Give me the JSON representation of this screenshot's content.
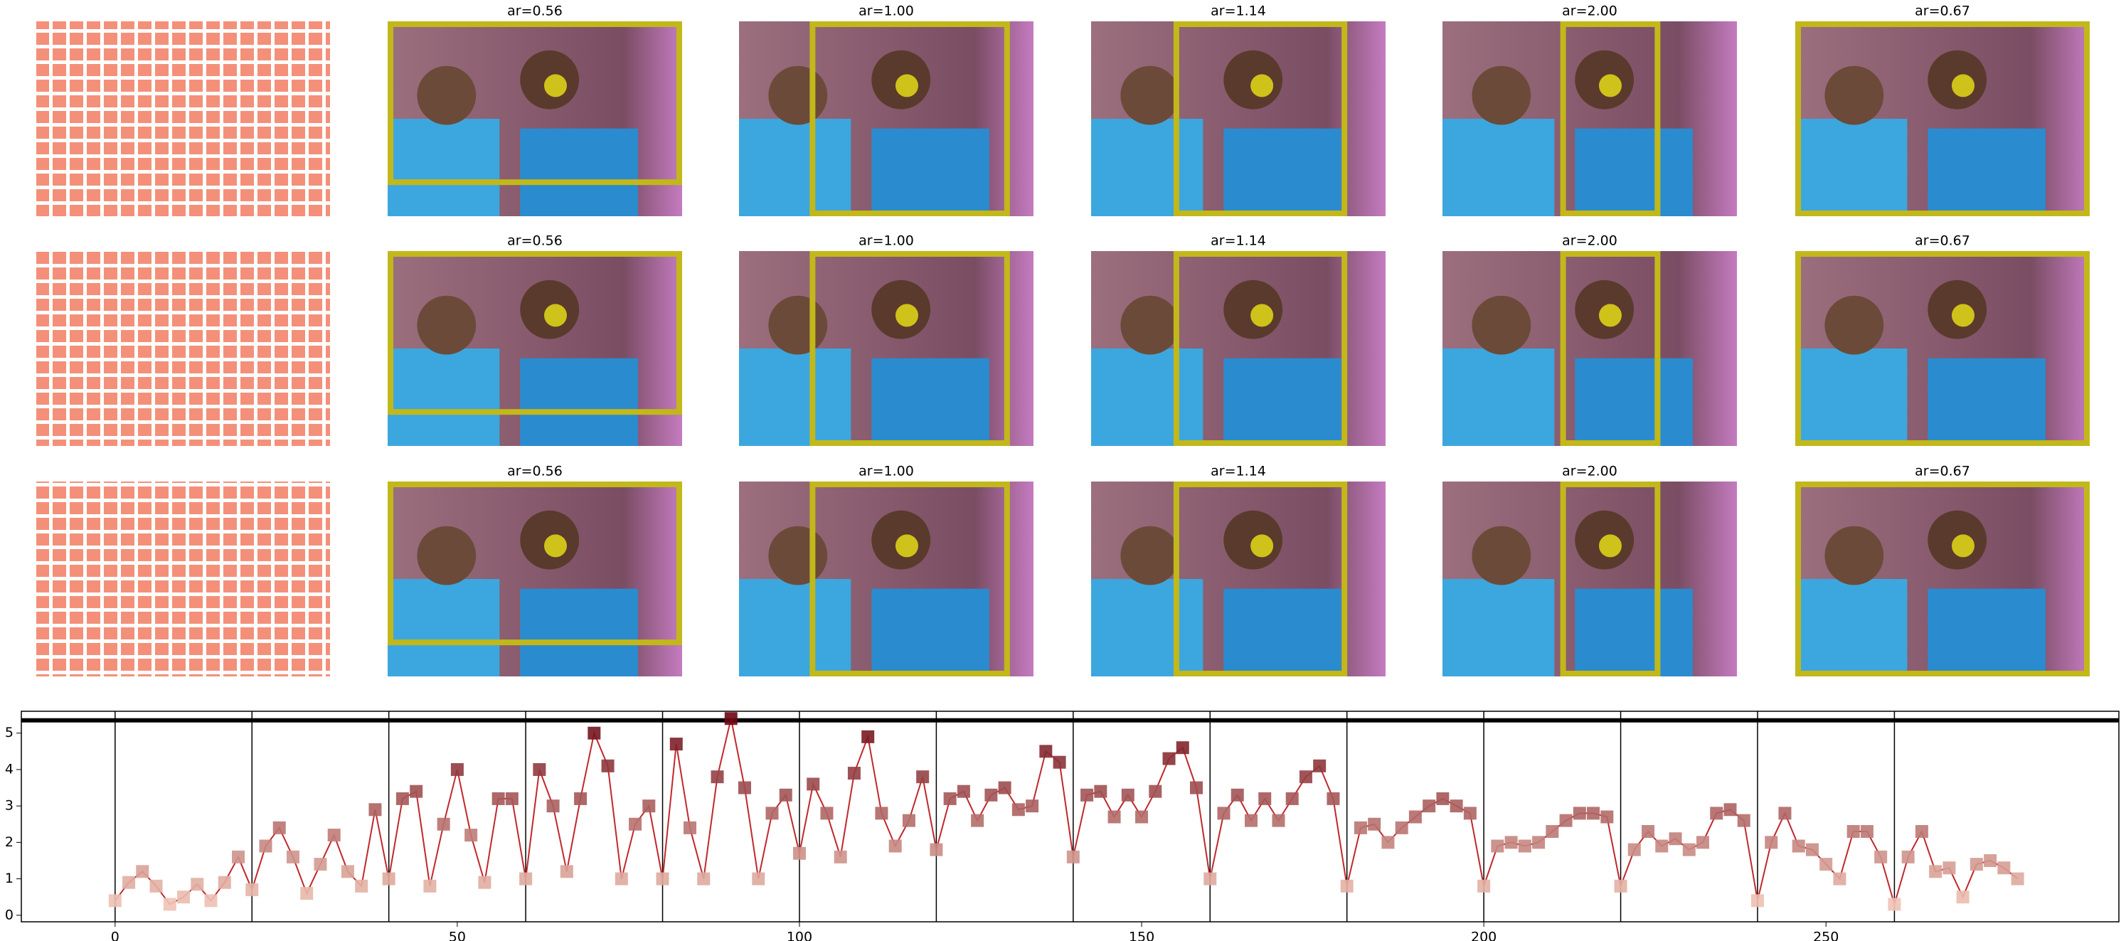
{
  "panels": {
    "rows": [
      {
        "titles": [
          "ar=0.56",
          "ar=1.00",
          "ar=1.14",
          "ar=2.00",
          "ar=0.67"
        ]
      },
      {
        "titles": [
          "ar=0.56",
          "ar=1.00",
          "ar=1.14",
          "ar=2.00",
          "ar=0.67"
        ]
      },
      {
        "titles": [
          "ar=0.56",
          "ar=1.00",
          "ar=1.14",
          "ar=2.00",
          "ar=0.67"
        ]
      }
    ]
  },
  "chart_data": {
    "type": "line",
    "x": [
      0,
      2,
      4,
      6,
      8,
      10,
      12,
      14,
      16,
      18,
      20,
      22,
      24,
      26,
      28,
      30,
      32,
      34,
      36,
      38,
      40,
      42,
      44,
      46,
      48,
      50,
      52,
      54,
      56,
      58,
      60,
      62,
      64,
      66,
      68,
      70,
      72,
      74,
      76,
      78,
      80,
      82,
      84,
      86,
      88,
      90,
      92,
      94,
      96,
      98,
      100,
      102,
      104,
      106,
      108,
      110,
      112,
      114,
      116,
      118,
      120,
      122,
      124,
      126,
      128,
      130,
      132,
      134,
      136,
      138,
      140,
      142,
      144,
      146,
      148,
      150,
      152,
      154,
      156,
      158,
      160,
      162,
      164,
      166,
      168,
      170,
      172,
      174,
      176,
      178,
      180,
      182,
      184,
      186,
      188,
      190,
      192,
      194,
      196,
      198,
      200,
      202,
      204,
      206,
      208,
      210,
      212,
      214,
      216,
      218,
      220,
      222,
      224,
      226,
      228,
      230,
      232,
      234,
      236,
      238,
      240,
      242,
      244,
      246,
      248,
      250,
      252,
      254,
      256,
      258,
      260,
      262,
      264,
      266,
      268,
      270,
      272,
      274,
      276,
      278
    ],
    "series": [
      {
        "color": "#c0282c",
        "values": [
          0.4,
          0.9,
          1.2,
          0.8,
          0.3,
          0.5,
          0.85,
          0.4,
          0.9,
          1.6,
          0.7,
          1.9,
          2.4,
          1.6,
          0.6,
          1.4,
          2.2,
          1.2,
          0.8,
          2.9,
          1.0,
          3.2,
          3.4,
          0.8,
          2.5,
          4.0,
          2.2,
          0.9,
          3.2,
          3.2,
          1.0,
          4.0,
          3.0,
          1.2,
          3.2,
          5.0,
          4.1,
          1.0,
          2.5,
          3.0,
          1.0,
          4.7,
          2.4,
          1.0,
          3.8,
          5.4,
          3.5,
          1.0,
          2.8,
          3.3,
          1.7,
          3.6,
          2.8,
          1.6,
          3.9,
          4.9,
          2.8,
          1.9,
          2.6,
          3.8,
          1.8,
          3.2,
          3.4,
          2.6,
          3.3,
          3.5,
          2.9,
          3.0,
          4.5,
          4.2,
          1.6,
          3.3,
          3.4,
          2.7,
          3.3,
          2.7,
          3.4,
          4.3,
          4.6,
          3.5,
          1.0,
          2.8,
          3.3,
          2.6,
          3.2,
          2.6,
          3.2,
          3.8,
          4.1,
          3.2,
          0.8,
          2.4,
          2.5,
          2.0,
          2.4,
          2.7,
          3.0,
          3.2,
          3.0,
          2.8,
          0.8,
          1.9,
          2.0,
          1.9,
          2.0,
          2.3,
          2.6,
          2.8,
          2.8,
          2.7,
          0.8,
          1.8,
          2.3,
          1.9,
          2.1,
          1.8,
          2.0,
          2.8,
          2.9,
          2.6,
          0.4,
          2.0,
          2.8,
          1.9,
          1.8,
          1.4,
          1.0,
          2.3,
          2.3,
          1.6,
          0.3,
          1.6,
          2.3,
          1.2,
          1.3,
          0.5,
          1.4,
          1.5,
          1.3,
          1.0
        ]
      }
    ],
    "marker_colors": [
      "#fcd5c4",
      "#67000d"
    ],
    "xlim": [
      -13.7,
      292.8
    ],
    "ylim": [
      -0.18,
      5.6
    ],
    "xticks": [
      0,
      50,
      100,
      150,
      200,
      250
    ],
    "yticks": [
      0,
      1,
      2,
      3,
      4,
      5
    ],
    "vlines": [
      0,
      20,
      40,
      60,
      80,
      100,
      120,
      140,
      160,
      180,
      200,
      220,
      240,
      260
    ],
    "hline": 5.35
  }
}
